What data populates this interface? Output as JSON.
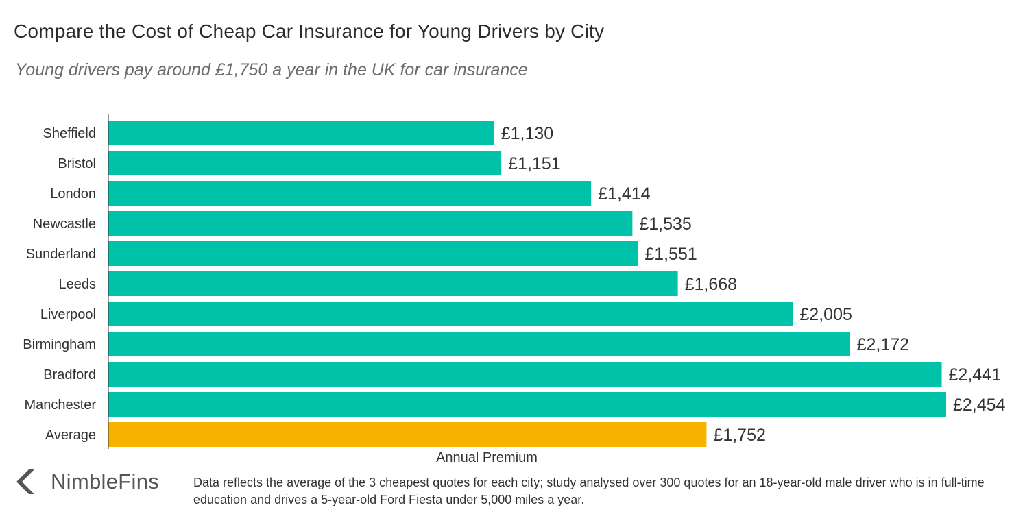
{
  "title": "Compare the Cost of Cheap Car Insurance for Young Drivers by City",
  "subtitle": "Young drivers pay around £1,750 a year in the UK for car insurance",
  "colors": {
    "city_bar": "#00c2a8",
    "average_bar": "#f8b300"
  },
  "chart_data": {
    "type": "bar",
    "orientation": "horizontal",
    "categories": [
      "Sheffield",
      "Bristol",
      "London",
      "Newcastle",
      "Sunderland",
      "Leeds",
      "Liverpool",
      "Birmingham",
      "Bradford",
      "Manchester",
      "Average"
    ],
    "values": [
      1130,
      1151,
      1414,
      1535,
      1551,
      1668,
      2005,
      2172,
      2441,
      2454,
      1752
    ],
    "value_labels": [
      "£1,130",
      "£1,151",
      "£1,414",
      "£1,535",
      "£1,551",
      "£1,668",
      "£2,005",
      "£2,172",
      "£2,441",
      "£2,454",
      "£1,752"
    ],
    "highlight_category": "Average",
    "xlabel": "Annual Premium",
    "xlim": [
      0,
      2454
    ],
    "grid": false,
    "legend": "none"
  },
  "footer": {
    "logo_text": "NimbleFins",
    "note": "Data reflects the average of the 3 cheapest quotes for each city; study analysed over 300 quotes for an 18-year-old male driver who is in full-time education and drives a 5-year-old Ford Fiesta under 5,000 miles a year."
  }
}
